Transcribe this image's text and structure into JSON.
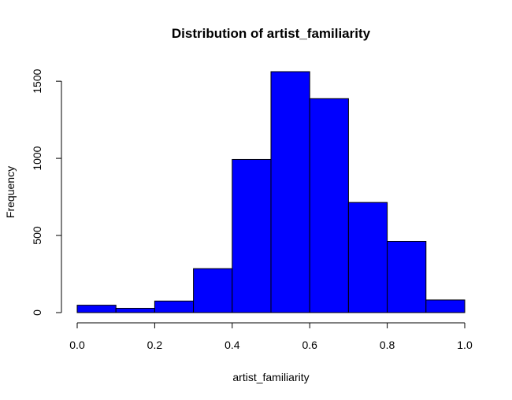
{
  "chart_data": {
    "type": "bar",
    "title": "Distribution of artist_familiarity",
    "xlabel": "artist_familiarity",
    "ylabel": "Frequency",
    "bins": [
      {
        "x0": 0.0,
        "x1": 0.1,
        "count": 48
      },
      {
        "x0": 0.1,
        "x1": 0.2,
        "count": 28
      },
      {
        "x0": 0.2,
        "x1": 0.3,
        "count": 75
      },
      {
        "x0": 0.3,
        "x1": 0.4,
        "count": 285
      },
      {
        "x0": 0.4,
        "x1": 0.5,
        "count": 993
      },
      {
        "x0": 0.5,
        "x1": 0.6,
        "count": 1562
      },
      {
        "x0": 0.6,
        "x1": 0.7,
        "count": 1387
      },
      {
        "x0": 0.7,
        "x1": 0.8,
        "count": 714
      },
      {
        "x0": 0.8,
        "x1": 0.9,
        "count": 462
      },
      {
        "x0": 0.9,
        "x1": 1.0,
        "count": 82
      }
    ],
    "x_ticks": [
      0.0,
      0.2,
      0.4,
      0.6,
      0.8,
      1.0
    ],
    "x_tick_labels": [
      "0.0",
      "0.2",
      "0.4",
      "0.6",
      "0.8",
      "1.0"
    ],
    "y_ticks": [
      0,
      500,
      1000,
      1500
    ],
    "y_tick_labels": [
      "0",
      "500",
      "1000",
      "1500"
    ],
    "xlim": [
      0.0,
      1.0
    ],
    "ylim": [
      0,
      1562
    ],
    "grid": false,
    "bar_color": "#0000ff",
    "bar_border_color": "#000000"
  }
}
